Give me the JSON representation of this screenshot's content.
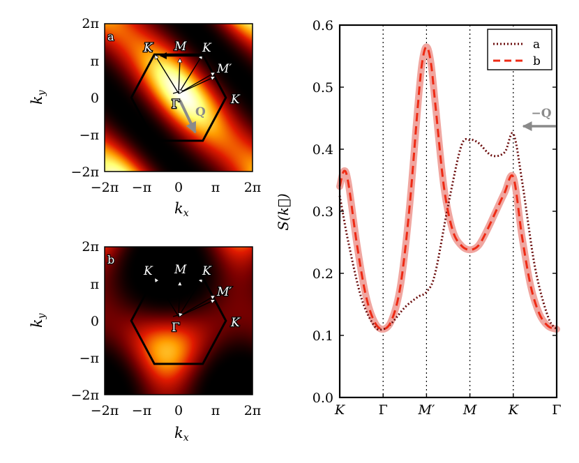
{
  "colors": {
    "curve_a": "#6b0d0d",
    "curve_b": "#ee2a14",
    "band_b": "#f0a6a0",
    "q_arrow": "#8a8a8a",
    "colormap": [
      "#000000",
      "#7a0000",
      "#e01a00",
      "#ff9c00",
      "#ffff70",
      "#ffffff"
    ]
  },
  "heatmaps": [
    {
      "panel_label": "a",
      "xlabel": "k_x",
      "ylabel": "k_y",
      "x_ticks": [
        "−2π",
        "−π",
        "0",
        "π",
        "2π"
      ],
      "y_ticks": [
        "2π",
        "π",
        "0",
        "−π",
        "−2π"
      ],
      "points": {
        "K": "K",
        "M": "M",
        "K2": "K",
        "Mp": "M′",
        "K3": "K",
        "Gamma": "Γ"
      },
      "q_label": "Q",
      "range": [
        -6.2832,
        6.2832
      ]
    },
    {
      "panel_label": "b",
      "xlabel": "k_x",
      "ylabel": "k_y",
      "x_ticks": [
        "−2π",
        "−π",
        "0",
        "π",
        "2π"
      ],
      "y_ticks": [
        "2π",
        "π",
        "0",
        "−π",
        "−2π"
      ],
      "points": {
        "K": "K",
        "M": "M",
        "K2": "K",
        "Mp": "M′",
        "K3": "K",
        "Gamma": "Γ"
      },
      "range": [
        -6.2832,
        6.2832
      ]
    }
  ],
  "chart_data": {
    "type": "line",
    "title": "",
    "xlabel": "",
    "ylabel": "S(k⃗)",
    "ylim": [
      0.0,
      0.6
    ],
    "y_ticks": [
      "0.0",
      "0.1",
      "0.2",
      "0.3",
      "0.4",
      "0.5",
      "0.6"
    ],
    "x_ticks": [
      "K",
      "Γ",
      "M′",
      "M",
      "K",
      "Γ"
    ],
    "x_tick_positions": [
      0,
      1,
      2,
      3,
      4,
      5
    ],
    "xlim": [
      0,
      5
    ],
    "vertical_gridlines_at": [
      1,
      2,
      3,
      4
    ],
    "legend": {
      "location": "top-right",
      "entries": [
        "a",
        "b"
      ]
    },
    "annotation": "−Q",
    "series": [
      {
        "name": "a",
        "style": "dotted",
        "x": [
          0,
          0.2,
          0.5,
          0.8,
          1.0,
          1.2,
          1.5,
          1.8,
          2.0,
          2.2,
          2.5,
          2.8,
          3.0,
          3.2,
          3.5,
          3.8,
          4.0,
          4.2,
          4.5,
          4.8,
          5.0
        ],
        "y": [
          0.325,
          0.25,
          0.16,
          0.115,
          0.11,
          0.12,
          0.145,
          0.162,
          0.17,
          0.2,
          0.31,
          0.405,
          0.415,
          0.41,
          0.39,
          0.395,
          0.425,
          0.35,
          0.21,
          0.13,
          0.11
        ]
      },
      {
        "name": "b",
        "style": "dashed",
        "x": [
          0,
          0.1,
          0.2,
          0.4,
          0.6,
          0.8,
          1.0,
          1.2,
          1.4,
          1.6,
          1.8,
          1.9,
          2.0,
          2.1,
          2.2,
          2.4,
          2.6,
          2.8,
          3.0,
          3.2,
          3.4,
          3.6,
          3.8,
          4.0,
          4.2,
          4.4,
          4.6,
          4.8,
          5.0
        ],
        "y": [
          0.34,
          0.365,
          0.345,
          0.245,
          0.165,
          0.122,
          0.11,
          0.125,
          0.18,
          0.3,
          0.47,
          0.54,
          0.565,
          0.54,
          0.475,
          0.34,
          0.27,
          0.245,
          0.238,
          0.245,
          0.27,
          0.3,
          0.33,
          0.355,
          0.26,
          0.18,
          0.135,
          0.115,
          0.11
        ]
      }
    ]
  }
}
